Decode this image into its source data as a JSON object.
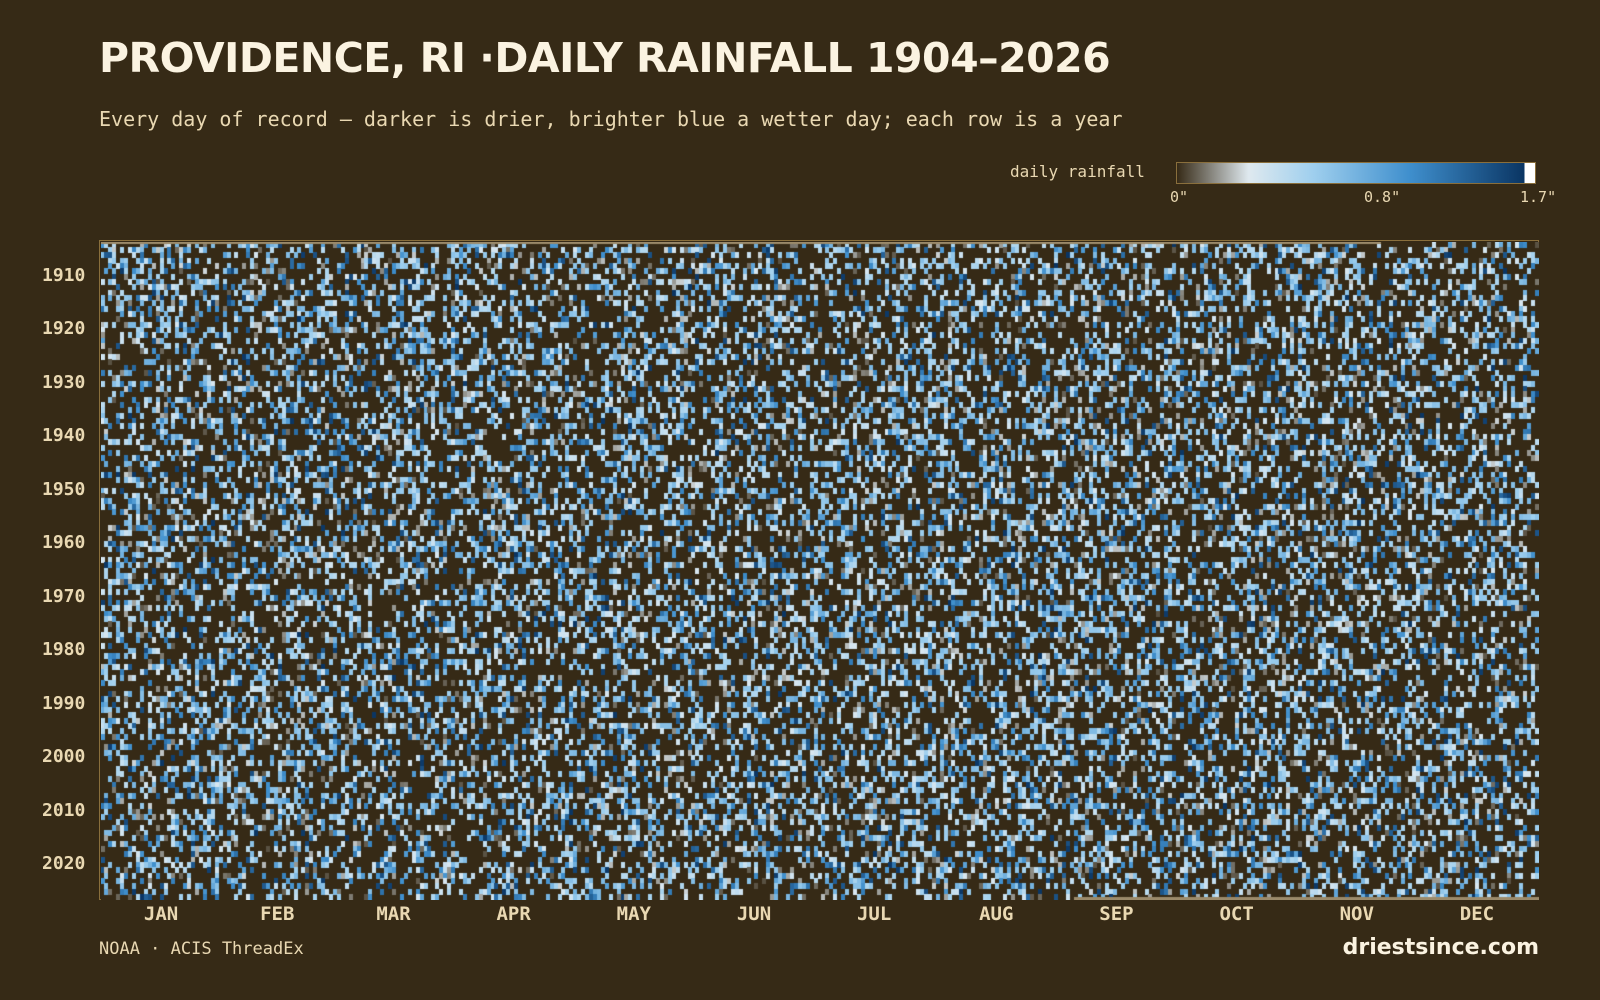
{
  "chart_data": {
    "type": "heatmap",
    "title": "PROVIDENCE, RI ·DAILY RAINFALL 1904–2026",
    "subtitle": "Every day of record — darker is drier, brighter blue a wetter day; each row is a year",
    "legend": {
      "label": "daily rainfall",
      "min": 0,
      "max": 1.7,
      "ticks": [
        "0\"",
        "0.8\"",
        "1.7\""
      ],
      "placement": "top-right",
      "colors": [
        "#362a16",
        "#dfe9ef",
        "#9fcfee",
        "#3f8fcd",
        "#0a3563",
        "#ffffff"
      ]
    },
    "year_range": [
      1904,
      2026
    ],
    "y_ticks": [
      "1910",
      "1920",
      "1930",
      "1940",
      "1950",
      "1960",
      "1970",
      "1980",
      "1990",
      "2000",
      "2010",
      "2020"
    ],
    "y_tick_values": [
      1910,
      1920,
      1930,
      1940,
      1950,
      1960,
      1970,
      1980,
      1990,
      2000,
      2010,
      2020
    ],
    "x_ticks": [
      "JAN",
      "FEB",
      "MAR",
      "APR",
      "MAY",
      "JUN",
      "JUL",
      "AUG",
      "SEP",
      "OCT",
      "NOV",
      "DEC"
    ],
    "month_lengths": [
      31,
      28,
      31,
      30,
      31,
      30,
      31,
      31,
      30,
      31,
      30,
      31
    ],
    "wet_day_fraction": 0.38,
    "data_note_source": "NOAA · ACIS ThreadEx",
    "grid": false
  },
  "footer": {
    "source": "NOAA · ACIS ThreadEx",
    "brand": "driestsince.com"
  },
  "colors": {
    "background": "#362a16",
    "frame": "#8a6f3c",
    "text": "#e9d8b2",
    "title": "#fbf3e1"
  }
}
